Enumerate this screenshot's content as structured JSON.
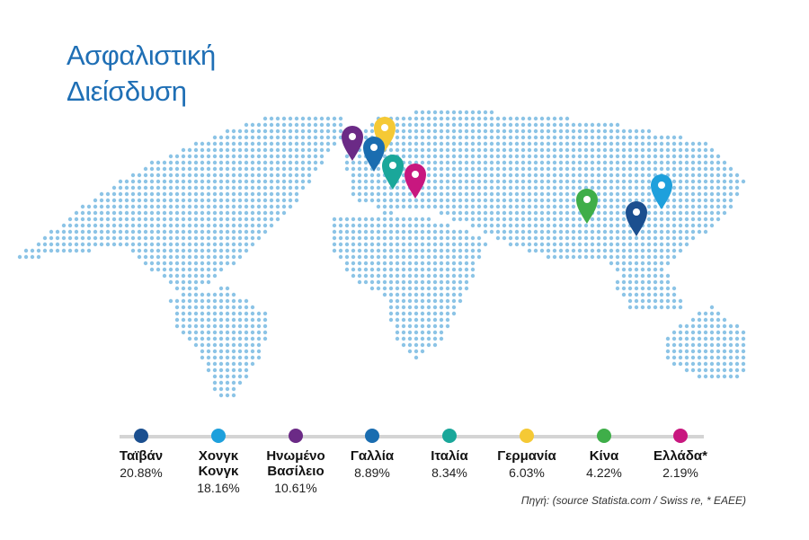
{
  "header": {
    "title_lines": [
      "Ασφαλιστική",
      "Διείσδυση"
    ]
  },
  "legend": {
    "items": [
      {
        "name": "Ταϊβάν",
        "value": "20.88%",
        "color": "#1b4f8f"
      },
      {
        "name": "Χονγκ Κονγκ",
        "value": "18.16%",
        "color": "#1ea0dc"
      },
      {
        "name": "Ηνωμένο Βασίλειο",
        "value": "10.61%",
        "color": "#6b2a86"
      },
      {
        "name": "Γαλλία",
        "value": "8.89%",
        "color": "#1a6db0"
      },
      {
        "name": "Ιταλία",
        "value": "8.34%",
        "color": "#1aa79a"
      },
      {
        "name": "Γερμανία",
        "value": "6.03%",
        "color": "#f5c935"
      },
      {
        "name": "Κίνα",
        "value": "4.22%",
        "color": "#3fae49"
      },
      {
        "name": "Ελλάδα*",
        "value": "2.19%",
        "color": "#c8177f"
      }
    ]
  },
  "source": "Πηγή: (source Statista.com / Swiss re, * ΕΑΕΕ)"
}
